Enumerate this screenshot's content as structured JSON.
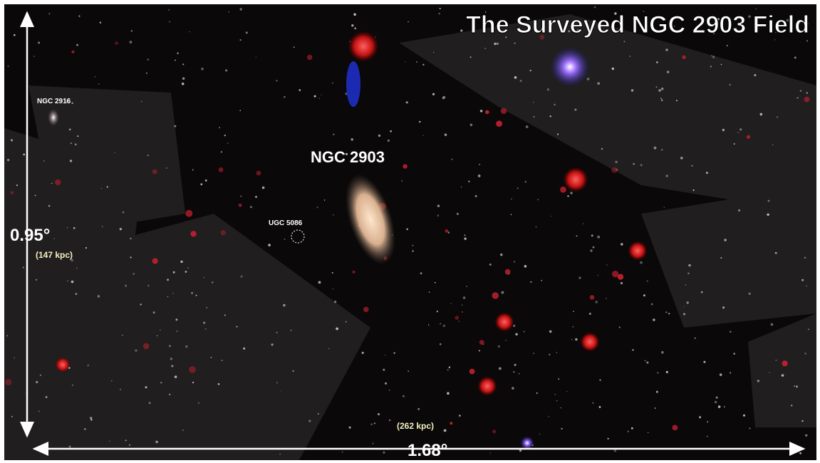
{
  "title": "The Surveyed NGC 2903 Field",
  "labels": {
    "ngc2916": "NGC 2916",
    "ngc2903": "NGC 2903",
    "ugc": "UGC 5086"
  },
  "scale": {
    "vertical": {
      "angle": "0.95°",
      "distance": "(147 kpc)"
    },
    "horizontal": {
      "angle": "1.68°",
      "distance": "(262 kpc)"
    }
  }
}
